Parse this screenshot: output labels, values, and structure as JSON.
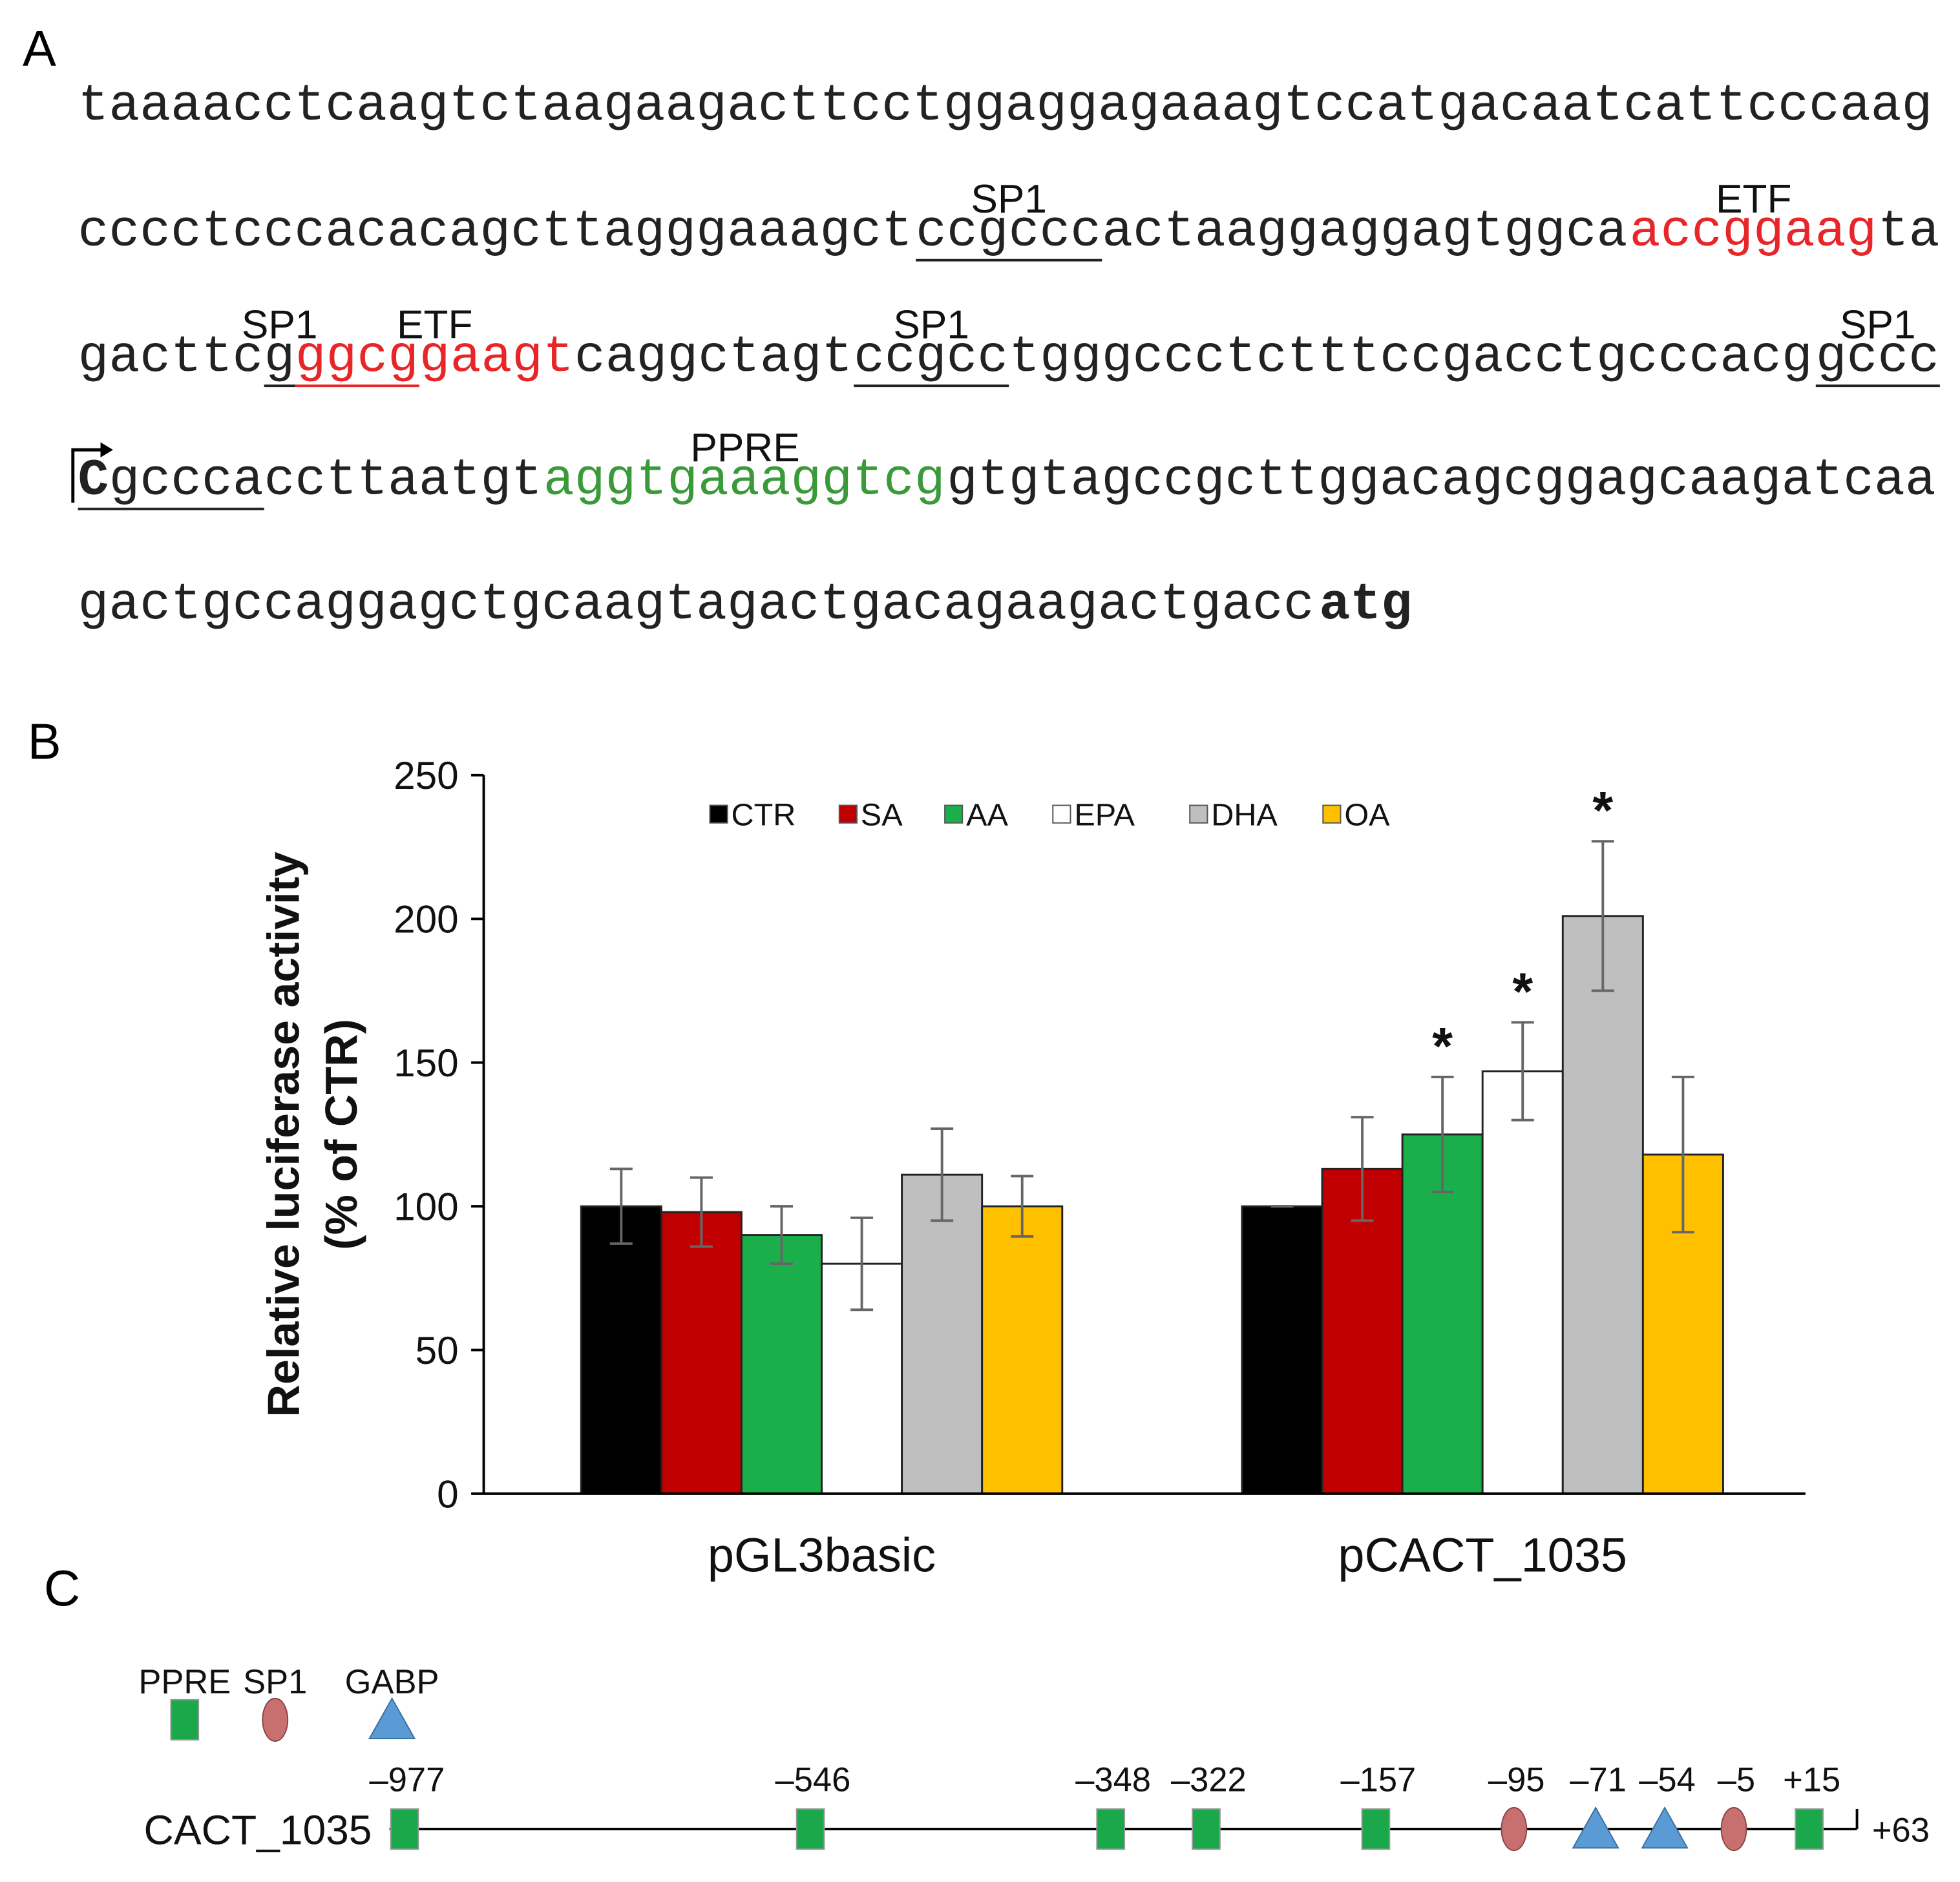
{
  "panel_a": {
    "label": "A",
    "lines": [
      [
        {
          "text": "taaaacctcaagtctaagaagacttcctggaggagaaagtccatgacaatcattcccaag"
        }
      ],
      [
        {
          "text": "cccctcccacacagcttagggaaagct"
        },
        {
          "text": "ccgccc",
          "underline": true,
          "label": "SP1"
        },
        {
          "text": "actaaggaggagtggca"
        },
        {
          "text": "accggaag",
          "color": "#e8262a",
          "label": "ETF"
        },
        {
          "text": "ta"
        }
      ],
      [
        {
          "text": "gacttc"
        },
        {
          "text": "g",
          "underline": true,
          "label": "SP1"
        },
        {
          "color": "#e8262a",
          "label": "ETF",
          "parts": [
            {
              "text": "ggcg",
              "underline": true
            },
            {
              "text": "gaagt"
            }
          ]
        },
        {
          "text": "caggctagt"
        },
        {
          "text": "ccgcc",
          "underline": true,
          "label": "SP1"
        },
        {
          "text": "tgggccctctttccgacctgcccacg"
        },
        {
          "text": "gccc",
          "underline": true,
          "label": "SP1"
        }
      ],
      [
        {
          "text": "C",
          "bold": true,
          "underline": true
        },
        {
          "text": "gccca",
          "underline": true
        },
        {
          "text": "ccttaatgt"
        },
        {
          "text": "aggtgaaaggtcg",
          "color": "#3a9a3a",
          "label": "PPRE"
        },
        {
          "text": "gtgtagccgcttggacagcggagcaagatcaa"
        }
      ],
      [
        {
          "text": "gactgccaggagctgcaagtagactgacagaagactgacc"
        },
        {
          "text": "atg",
          "bold": true
        }
      ]
    ]
  },
  "chart_data": {
    "type": "bar",
    "panel_label": "B",
    "y_label": [
      "Relative luciferase activity",
      "(% of CTR)"
    ],
    "categories": [
      "pGL3basic",
      "pCACT_1035"
    ],
    "series": [
      {
        "name": "CTR",
        "color": "#000000",
        "values": [
          100,
          100
        ],
        "errors": [
          13,
          0
        ]
      },
      {
        "name": "SA",
        "color": "#c00000",
        "values": [
          98,
          113
        ],
        "errors": [
          12,
          18
        ]
      },
      {
        "name": "AA",
        "color": "#1aaf4b",
        "values": [
          90,
          125
        ],
        "errors": [
          10,
          20
        ],
        "labels": [
          null,
          "*"
        ]
      },
      {
        "name": "EPA",
        "color": "#ffffff",
        "values": [
          80,
          147
        ],
        "errors": [
          16,
          17
        ],
        "labels": [
          null,
          "*"
        ]
      },
      {
        "name": "DHA",
        "color": "#bfbfbf",
        "values": [
          111,
          201
        ],
        "errors": [
          16,
          26
        ],
        "labels": [
          null,
          "*"
        ]
      },
      {
        "name": "OA",
        "color": "#ffc000",
        "values": [
          100,
          118
        ],
        "errors": [
          10.5,
          27
        ]
      }
    ],
    "ylim": [
      0,
      250
    ],
    "yticks": [
      0,
      50,
      100,
      150,
      200,
      250
    ],
    "grid": false,
    "legend": "top"
  },
  "panel_c": {
    "label": "C",
    "legend": [
      {
        "name": "PPRE",
        "shape": "square",
        "color": "#1aa84a"
      },
      {
        "name": "SP1",
        "shape": "ellipse",
        "color": "#c87070"
      },
      {
        "name": "GABP",
        "shape": "triangle",
        "color": "#5b9bd5"
      }
    ],
    "construct": "CACT_1035",
    "end_label": "+63",
    "sites": [
      {
        "label": "–977",
        "shape": "square",
        "color": "#1aa84a"
      },
      {
        "label": "–546",
        "shape": "square",
        "color": "#1aa84a"
      },
      {
        "label": "–348",
        "shape": "square",
        "color": "#1aa84a"
      },
      {
        "label": "–322",
        "shape": "square",
        "color": "#1aa84a"
      },
      {
        "label": "–157",
        "shape": "square",
        "color": "#1aa84a"
      },
      {
        "label": "–95",
        "shape": "ellipse",
        "color": "#c87070"
      },
      {
        "label": "–71",
        "shape": "triangle",
        "color": "#5b9bd5"
      },
      {
        "label": "–54",
        "shape": "triangle",
        "color": "#5b9bd5"
      },
      {
        "label": "–5",
        "shape": "ellipse",
        "color": "#c87070"
      },
      {
        "label": "+15",
        "shape": "square",
        "color": "#1aa84a"
      }
    ]
  }
}
